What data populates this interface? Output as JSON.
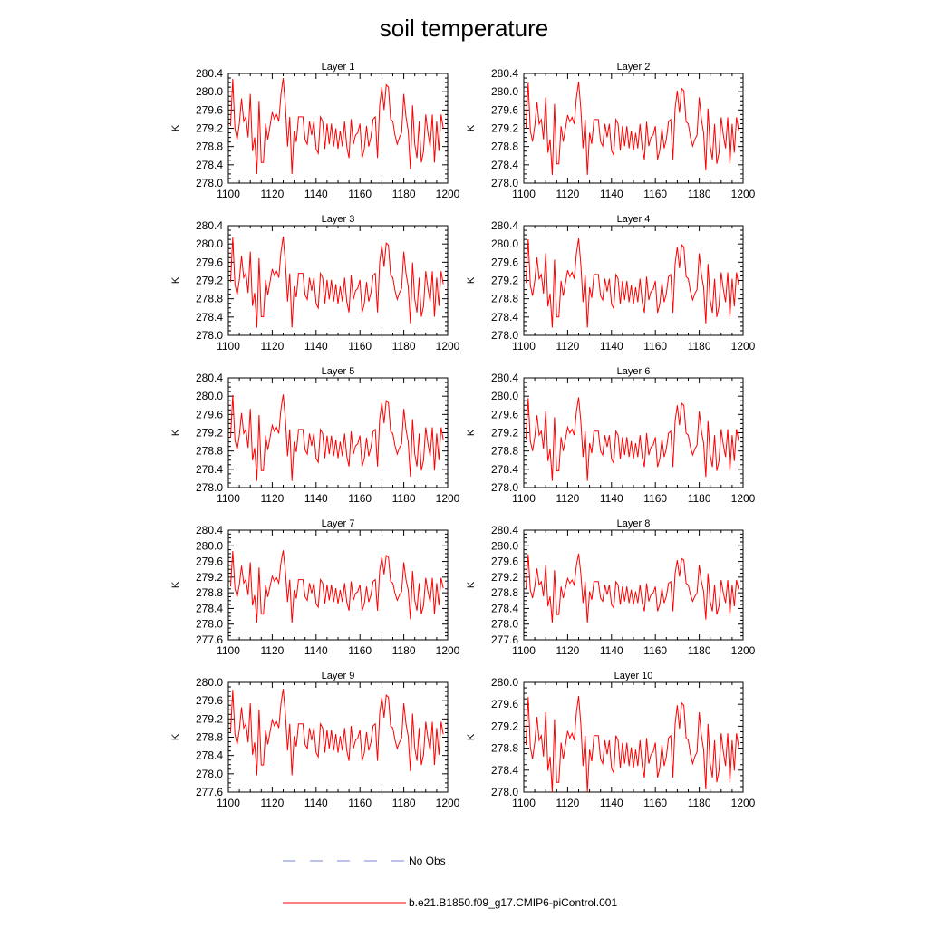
{
  "title": "soil temperature",
  "chart_data": {
    "type": "line",
    "title": "soil temperature",
    "ylabel": "K",
    "xlim": [
      1100,
      1200
    ],
    "xticks": [
      1100,
      1120,
      1140,
      1160,
      1180,
      1200
    ],
    "series_name": "b.e21.B1850.f09_g17.CMIP6-piControl.001",
    "series_color": "#ff0000",
    "obs_name": "No Obs",
    "obs_color": "#7b86d6",
    "base_series": {
      "x_start": 1101,
      "values": [
        279.25,
        280.28,
        279.2,
        278.95,
        279.3,
        279.85,
        279.35,
        279.45,
        279.0,
        279.95,
        278.7,
        279.0,
        278.2,
        279.8,
        278.45,
        278.45,
        279.3,
        278.95,
        279.25,
        279.55,
        279.4,
        279.5,
        279.35,
        279.95,
        280.3,
        279.7,
        278.8,
        279.45,
        278.2,
        279.15,
        278.9,
        279.45,
        279.45,
        279.45,
        278.95,
        278.85,
        279.35,
        279.05,
        279.35,
        278.75,
        278.65,
        279.45,
        279.35,
        278.75,
        279.3,
        278.85,
        279.3,
        278.8,
        279.2,
        278.75,
        279.15,
        278.8,
        279.35,
        278.8,
        278.55,
        279.4,
        278.85,
        279.05,
        279.1,
        279.3,
        278.55,
        278.75,
        279.25,
        278.8,
        279.0,
        279.4,
        279.45,
        278.55,
        279.7,
        280.1,
        279.6,
        280.15,
        280.1,
        279.4,
        279.35,
        279.05,
        278.85,
        279.0,
        279.1,
        279.95,
        279.45,
        279.15,
        278.3,
        279.7,
        278.85,
        278.55,
        279.35,
        278.45,
        278.7,
        279.5,
        279.1,
        278.8,
        279.5,
        278.45,
        279.35,
        278.7,
        279.5,
        279.2
      ]
    },
    "panels": [
      {
        "title": "Layer 1",
        "ylim": [
          278.0,
          280.4
        ],
        "yticks": [
          "280.4",
          "280.0",
          "279.6",
          "279.2",
          "278.8",
          "278.4",
          "278.0"
        ],
        "offset": 0.0,
        "scale": 1.0
      },
      {
        "title": "Layer 2",
        "ylim": [
          278.0,
          280.4
        ],
        "yticks": [
          "280.4",
          "280.0",
          "279.6",
          "279.2",
          "278.8",
          "278.4",
          "278.0"
        ],
        "offset": -0.05,
        "scale": 0.97
      },
      {
        "title": "Layer 3",
        "ylim": [
          278.0,
          280.4
        ],
        "yticks": [
          "280.4",
          "280.0",
          "279.6",
          "279.2",
          "278.8",
          "278.4",
          "278.0"
        ],
        "offset": -0.08,
        "scale": 0.95
      },
      {
        "title": "Layer 4",
        "ylim": [
          278.0,
          280.4
        ],
        "yticks": [
          "280.4",
          "280.0",
          "279.6",
          "279.2",
          "278.8",
          "278.4",
          "278.0"
        ],
        "offset": -0.1,
        "scale": 0.93
      },
      {
        "title": "Layer 5",
        "ylim": [
          278.0,
          280.4
        ],
        "yticks": [
          "280.4",
          "280.0",
          "279.6",
          "279.2",
          "278.8",
          "278.4",
          "278.0"
        ],
        "offset": -0.15,
        "scale": 0.9
      },
      {
        "title": "Layer 6",
        "ylim": [
          278.0,
          280.4
        ],
        "yticks": [
          "280.4",
          "280.0",
          "279.6",
          "279.2",
          "278.8",
          "278.4",
          "278.0"
        ],
        "offset": -0.18,
        "scale": 0.87
      },
      {
        "title": "Layer 7",
        "ylim": [
          277.6,
          280.4
        ],
        "yticks": [
          "280.4",
          "280.0",
          "279.6",
          "279.2",
          "278.8",
          "278.4",
          "278.0",
          "277.6"
        ],
        "offset": -0.28,
        "scale": 0.88
      },
      {
        "title": "Layer 8",
        "ylim": [
          277.6,
          280.4
        ],
        "yticks": [
          "280.4",
          "280.0",
          "279.6",
          "279.2",
          "278.8",
          "278.4",
          "278.0",
          "277.6"
        ],
        "offset": -0.32,
        "scale": 0.84
      },
      {
        "title": "Layer 9",
        "ylim": [
          277.6,
          280.0
        ],
        "yticks": [
          "280.0",
          "279.6",
          "279.2",
          "278.8",
          "278.4",
          "278.0",
          "277.6"
        ],
        "offset": -0.33,
        "scale": 0.9
      },
      {
        "title": "Layer 10",
        "ylim": [
          278.0,
          280.0
        ],
        "yticks": [
          "280.0",
          "279.6",
          "279.2",
          "278.8",
          "278.4",
          "278.0"
        ],
        "offset": -0.38,
        "scale": 0.85
      }
    ]
  }
}
